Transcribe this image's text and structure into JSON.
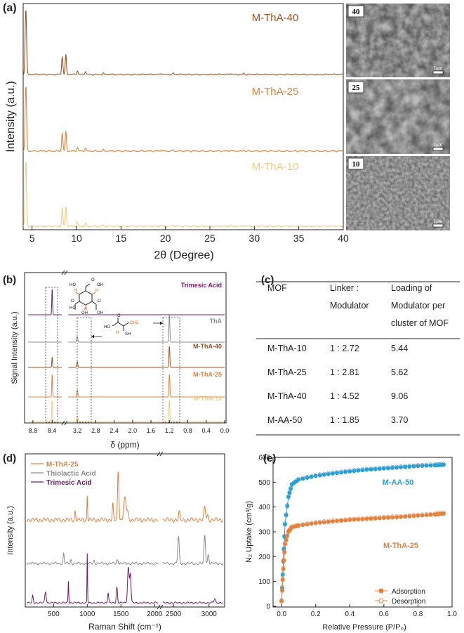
{
  "panel_a": {
    "label": "(a)",
    "ylabel": "Intensity (a.u.)",
    "xlabel": "2θ (Degree)",
    "xticks": [
      "5",
      "10",
      "15",
      "20",
      "25",
      "30",
      "35",
      "40"
    ],
    "traces": [
      {
        "name": "M-ThA-40",
        "color": "#a0521e"
      },
      {
        "name": "M-ThA-25",
        "color": "#e8803a"
      },
      {
        "name": "M-ThA-10",
        "color": "#f0cc82"
      }
    ],
    "sem": [
      {
        "label": "40",
        "scale": "1μm"
      },
      {
        "label": "25",
        "scale": "1μm"
      },
      {
        "label": "10",
        "scale": "1μm"
      }
    ]
  },
  "panel_b": {
    "label": "(b)",
    "ylabel": "Signal Intensity (a.u.)",
    "xlabel": "δ (ppm)",
    "xticks": [
      "8.8",
      "8.4",
      "3.2",
      "2.8",
      "2.4",
      "2.0",
      "1.6",
      "1.2",
      "0.8",
      "0.4",
      "0.0"
    ],
    "traces": [
      {
        "name": "Trimesic Acid",
        "color": "#7a1a6e"
      },
      {
        "name": "ThA",
        "color": "#8c8c8c"
      },
      {
        "name": "M-ThA-40",
        "color": "#a0521e"
      },
      {
        "name": "M-ThA-25",
        "color": "#e8803a"
      },
      {
        "name": "M-ThA-10",
        "color": "#f0cc82"
      }
    ],
    "mol_labels": [
      "HO",
      "HO",
      "OH",
      "OH",
      "OH",
      "O",
      "O",
      "O",
      "H",
      "H",
      "H",
      "O",
      "HO",
      "CH3",
      "H",
      "SH"
    ]
  },
  "panel_c": {
    "label": "(c)",
    "headers": [
      [
        "MOF"
      ],
      [
        "Linker :",
        "Modulator"
      ],
      [
        "Loading of",
        "Modulator per",
        "cluster of MOF"
      ]
    ],
    "rows": [
      [
        "M-ThA-10",
        "1 : 2.72",
        "5.44"
      ],
      [
        "M-ThA-25",
        "1 : 2.81",
        "5.62"
      ],
      [
        "M-ThA-40",
        "1 : 4.52",
        "9.06"
      ],
      [
        "M-AA-50",
        "1 : 1.85",
        "3.70"
      ]
    ]
  },
  "panel_d": {
    "label": "(d)",
    "ylabel": "Intensity (a.u.)",
    "xlabel": "Raman Shift (cm⁻¹)",
    "xticks": [
      "500",
      "1000",
      "1500",
      "2000",
      "2500",
      "3000"
    ],
    "legend": [
      {
        "name": "M-ThA-25",
        "color": "#e8803a"
      },
      {
        "name": "Thiolactic Acid",
        "color": "#8c8c8c"
      },
      {
        "name": "Trimesic Acid",
        "color": "#7a1a6e"
      }
    ]
  },
  "panel_e": {
    "label": "(e)",
    "ylabel": "N₂ Uptake (cm³/g)",
    "xlabel": "Relative Pressure (P/P₀)",
    "xticks": [
      "0.0",
      "0.2",
      "0.4",
      "0.6",
      "0.8",
      "1.0"
    ],
    "yticks": [
      "0",
      "100",
      "200",
      "300",
      "400",
      "500",
      "600"
    ],
    "series_labels": [
      "M-AA-50",
      "M-ThA-25"
    ],
    "legend": [
      "Adsorption",
      "Desorption"
    ]
  },
  "chart_data": [
    {
      "type": "line",
      "panel": "(a)",
      "xlabel": "2θ (Degree)",
      "ylabel": "Intensity (a.u.)",
      "xlim": [
        4,
        40
      ],
      "series": [
        {
          "name": "M-ThA-40",
          "peaks": [
            4.3,
            8.4,
            8.8,
            10.1,
            11.0,
            13.0,
            19.5,
            20.9,
            27.3,
            28.8
          ]
        },
        {
          "name": "M-ThA-25",
          "peaks": [
            4.3,
            8.4,
            8.8,
            10.1,
            11.0,
            13.0,
            19.5,
            20.9,
            27.3,
            28.8
          ]
        },
        {
          "name": "M-ThA-10",
          "peaks": [
            4.3,
            8.4,
            8.8,
            10.1,
            11.0,
            13.0,
            19.5,
            20.9,
            27.3,
            28.8
          ]
        }
      ]
    },
    {
      "type": "line",
      "panel": "(b)",
      "xlabel": "δ (ppm)",
      "ylabel": "Signal Intensity (a.u.)",
      "series": [
        {
          "name": "Trimesic Acid",
          "peaks_ppm": [
            8.4
          ]
        },
        {
          "name": "ThA",
          "peaks_ppm": [
            3.2,
            1.2
          ]
        },
        {
          "name": "M-ThA-40",
          "peaks_ppm": [
            8.4,
            3.2,
            1.2
          ]
        },
        {
          "name": "M-ThA-25",
          "peaks_ppm": [
            8.4,
            3.2,
            1.2
          ]
        },
        {
          "name": "M-ThA-10",
          "peaks_ppm": [
            8.4,
            3.2,
            1.2
          ]
        }
      ]
    },
    {
      "type": "table",
      "panel": "(c)",
      "columns": [
        "MOF",
        "Linker : Modulator",
        "Loading of Modulator per cluster of MOF"
      ],
      "rows": [
        [
          "M-ThA-10",
          "1 : 2.72",
          "5.44"
        ],
        [
          "M-ThA-25",
          "1 : 2.81",
          "5.62"
        ],
        [
          "M-ThA-40",
          "1 : 4.52",
          "9.06"
        ],
        [
          "M-AA-50",
          "1 : 1.85",
          "3.70"
        ]
      ]
    },
    {
      "type": "line",
      "panel": "(d)",
      "xlabel": "Raman Shift (cm⁻¹)",
      "ylabel": "Intensity (a.u.)",
      "series": [
        {
          "name": "M-ThA-25",
          "peaks": [
            820,
            1000,
            1380,
            1460,
            1560,
            2580,
            2940
          ]
        },
        {
          "name": "Thiolactic Acid",
          "peaks": [
            650,
            2570,
            2940
          ]
        },
        {
          "name": "Trimesic Acid",
          "peaks": [
            190,
            380,
            720,
            1000,
            1310,
            1440,
            1610,
            1640
          ]
        }
      ]
    },
    {
      "type": "scatter",
      "panel": "(e)",
      "xlabel": "Relative Pressure (P/P₀)",
      "ylabel": "N₂ Uptake (cm³/g)",
      "xlim": [
        -0.05,
        1.0
      ],
      "ylim": [
        0,
        600
      ],
      "series": [
        {
          "name": "M-AA-50",
          "x": [
            0.0,
            0.01,
            0.02,
            0.04,
            0.06,
            0.1,
            0.2,
            0.3,
            0.4,
            0.5,
            0.6,
            0.7,
            0.8,
            0.9,
            0.95
          ],
          "y": [
            20,
            180,
            330,
            440,
            490,
            510,
            525,
            535,
            543,
            550,
            555,
            560,
            565,
            568,
            570
          ]
        },
        {
          "name": "M-ThA-25",
          "x": [
            0.0,
            0.01,
            0.02,
            0.04,
            0.06,
            0.1,
            0.2,
            0.3,
            0.4,
            0.5,
            0.6,
            0.7,
            0.8,
            0.9,
            0.95
          ],
          "y": [
            20,
            150,
            250,
            300,
            318,
            325,
            335,
            342,
            348,
            352,
            356,
            360,
            365,
            370,
            373
          ]
        }
      ]
    }
  ]
}
